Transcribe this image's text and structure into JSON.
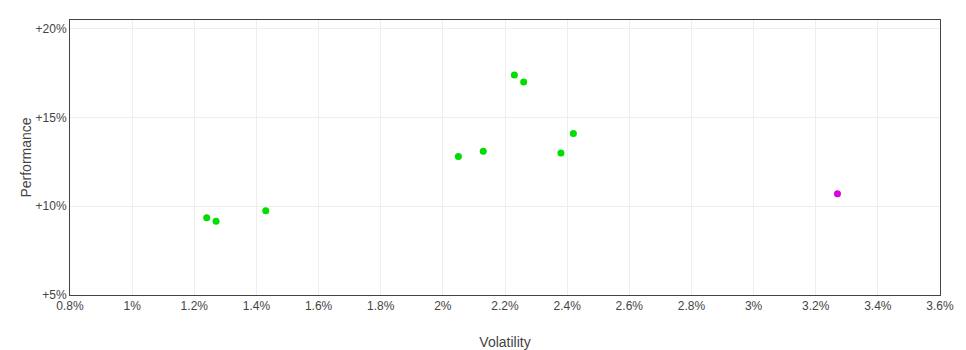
{
  "chart_data": {
    "type": "scatter",
    "xlabel": "Volatility",
    "ylabel": "Performance",
    "series": [
      {
        "color": "#00dd00",
        "x": [
          0.0124,
          0.0127,
          0.0143,
          0.0205,
          0.0213,
          0.0223,
          0.0226,
          0.0238,
          0.0242
        ],
        "values": [
          0.0935,
          0.0915,
          0.0975,
          0.128,
          0.131,
          0.174,
          0.17,
          0.13,
          0.141
        ]
      },
      {
        "color": "#dd00dd",
        "x": [
          0.0327
        ],
        "values": [
          0.107
        ]
      }
    ],
    "xlim": [
      0.008,
      0.036
    ],
    "ylim": [
      0.05,
      0.205
    ],
    "xticks": [
      {
        "value": 0.008,
        "label": "0.8%"
      },
      {
        "value": 0.01,
        "label": "1%"
      },
      {
        "value": 0.012,
        "label": "1.2%"
      },
      {
        "value": 0.014,
        "label": "1.4%"
      },
      {
        "value": 0.016,
        "label": "1.6%"
      },
      {
        "value": 0.018,
        "label": "1.8%"
      },
      {
        "value": 0.02,
        "label": "2%"
      },
      {
        "value": 0.022,
        "label": "2.2%"
      },
      {
        "value": 0.024,
        "label": "2.4%"
      },
      {
        "value": 0.026,
        "label": "2.6%"
      },
      {
        "value": 0.028,
        "label": "2.8%"
      },
      {
        "value": 0.03,
        "label": "3%"
      },
      {
        "value": 0.032,
        "label": "3.2%"
      },
      {
        "value": 0.034,
        "label": "3.4%"
      },
      {
        "value": 0.036,
        "label": "3.6%"
      }
    ],
    "yticks": [
      {
        "value": 0.05,
        "label": "+5%"
      },
      {
        "value": 0.1,
        "label": "+10%"
      },
      {
        "value": 0.15,
        "label": "+15%"
      },
      {
        "value": 0.2,
        "label": "+20%"
      }
    ],
    "grid": true
  }
}
